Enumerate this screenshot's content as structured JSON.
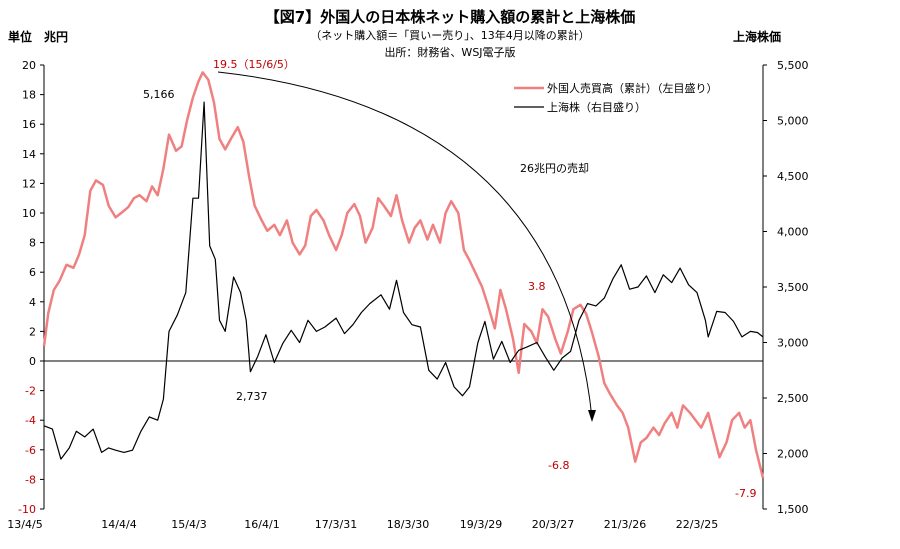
{
  "chart_data": {
    "type": "line",
    "title": "【図7】外国人の日本株ネット購入額の累計と上海株価",
    "subtitle": "（ネット購入額＝「買いー売り」、13年4月以降の累計）",
    "source": "出所：財務省、WSJ電子版",
    "left_unit_label": "単位　兆円",
    "right_axis_label": "上海株価",
    "left_axis": {
      "range": [
        -10,
        20
      ],
      "ticks": [
        -10,
        -8,
        -6,
        -4,
        -2,
        0,
        2,
        4,
        6,
        8,
        10,
        12,
        14,
        16,
        18,
        20
      ]
    },
    "right_axis": {
      "range": [
        1500,
        5500
      ],
      "ticks": [
        "1,500",
        "2,000",
        "2,500",
        "3,000",
        "3,500",
        "4,000",
        "4,500",
        "5,000",
        "5,500"
      ]
    },
    "x_tick_labels": [
      "13/4/5",
      "14/4/4",
      "15/4/3",
      "16/4/1",
      "17/3/31",
      "18/3/30",
      "19/3/29",
      "20/3/27",
      "21/3/26",
      "22/3/25"
    ],
    "x_range": [
      "2013-04-05",
      "2023-01-27"
    ],
    "grid": false,
    "legend_position": "top-right",
    "colors": {
      "foreign": "#f08080",
      "shanghai": "#000000",
      "annotation_red": "#c00000"
    },
    "series": [
      {
        "name": "外国人売買高（累計）（左目盛り）",
        "axis": "left",
        "points": [
          [
            "2013-04-05",
            1.0
          ],
          [
            "2013-04-26",
            3.2
          ],
          [
            "2013-05-24",
            4.8
          ],
          [
            "2013-06-21",
            5.4
          ],
          [
            "2013-07-26",
            6.5
          ],
          [
            "2013-08-30",
            6.3
          ],
          [
            "2013-09-27",
            7.2
          ],
          [
            "2013-10-25",
            8.5
          ],
          [
            "2013-11-22",
            11.5
          ],
          [
            "2013-12-20",
            12.2
          ],
          [
            "2014-01-24",
            11.9
          ],
          [
            "2014-02-21",
            10.5
          ],
          [
            "2014-03-28",
            9.7
          ],
          [
            "2014-04-25",
            10.0
          ],
          [
            "2014-05-30",
            10.4
          ],
          [
            "2014-06-27",
            11.0
          ],
          [
            "2014-07-25",
            11.2
          ],
          [
            "2014-08-29",
            10.8
          ],
          [
            "2014-09-26",
            11.8
          ],
          [
            "2014-10-24",
            11.2
          ],
          [
            "2014-11-21",
            13.0
          ],
          [
            "2014-12-19",
            15.3
          ],
          [
            "2015-01-23",
            14.2
          ],
          [
            "2015-02-20",
            14.5
          ],
          [
            "2015-03-20",
            16.3
          ],
          [
            "2015-04-17",
            17.8
          ],
          [
            "2015-05-15",
            18.9
          ],
          [
            "2015-06-05",
            19.5
          ],
          [
            "2015-07-03",
            19.0
          ],
          [
            "2015-07-31",
            17.5
          ],
          [
            "2015-08-28",
            15.0
          ],
          [
            "2015-09-25",
            14.3
          ],
          [
            "2015-10-23",
            15.0
          ],
          [
            "2015-11-27",
            15.8
          ],
          [
            "2015-12-25",
            14.8
          ],
          [
            "2016-01-22",
            12.5
          ],
          [
            "2016-02-19",
            10.5
          ],
          [
            "2016-03-25",
            9.5
          ],
          [
            "2016-04-22",
            8.8
          ],
          [
            "2016-05-27",
            9.2
          ],
          [
            "2016-06-24",
            8.5
          ],
          [
            "2016-07-29",
            9.5
          ],
          [
            "2016-08-26",
            8.0
          ],
          [
            "2016-09-30",
            7.2
          ],
          [
            "2016-10-28",
            7.8
          ],
          [
            "2016-11-25",
            9.8
          ],
          [
            "2016-12-23",
            10.2
          ],
          [
            "2017-01-27",
            9.5
          ],
          [
            "2017-02-24",
            8.5
          ],
          [
            "2017-03-31",
            7.5
          ],
          [
            "2017-04-28",
            8.5
          ],
          [
            "2017-05-26",
            10.0
          ],
          [
            "2017-06-30",
            10.6
          ],
          [
            "2017-07-28",
            9.8
          ],
          [
            "2017-08-25",
            8.0
          ],
          [
            "2017-09-29",
            9.0
          ],
          [
            "2017-10-27",
            11.0
          ],
          [
            "2017-11-24",
            10.5
          ],
          [
            "2017-12-29",
            9.8
          ],
          [
            "2018-01-26",
            11.2
          ],
          [
            "2018-02-23",
            9.5
          ],
          [
            "2018-03-30",
            8.0
          ],
          [
            "2018-04-27",
            9.0
          ],
          [
            "2018-05-25",
            9.5
          ],
          [
            "2018-06-29",
            8.2
          ],
          [
            "2018-07-27",
            9.2
          ],
          [
            "2018-08-31",
            8.0
          ],
          [
            "2018-09-28",
            10.0
          ],
          [
            "2018-10-26",
            10.8
          ],
          [
            "2018-11-30",
            10.0
          ],
          [
            "2018-12-28",
            7.5
          ],
          [
            "2019-01-25",
            6.8
          ],
          [
            "2019-02-22",
            6.0
          ],
          [
            "2019-03-29",
            5.0
          ],
          [
            "2019-04-26",
            3.8
          ],
          [
            "2019-05-31",
            2.2
          ],
          [
            "2019-06-28",
            4.8
          ],
          [
            "2019-07-26",
            3.5
          ],
          [
            "2019-08-30",
            1.5
          ],
          [
            "2019-09-27",
            -0.8
          ],
          [
            "2019-10-25",
            2.5
          ],
          [
            "2019-11-29",
            2.0
          ],
          [
            "2019-12-27",
            1.2
          ],
          [
            "2020-01-24",
            3.5
          ],
          [
            "2020-02-21",
            3.0
          ],
          [
            "2020-03-27",
            1.5
          ],
          [
            "2020-04-24",
            0.5
          ],
          [
            "2020-05-29",
            2.0
          ],
          [
            "2020-06-26",
            3.5
          ],
          [
            "2020-07-31",
            3.8
          ],
          [
            "2020-08-28",
            3.2
          ],
          [
            "2020-09-25",
            2.0
          ],
          [
            "2020-10-30",
            0.3
          ],
          [
            "2020-11-27",
            -1.5
          ],
          [
            "2020-12-25",
            -2.2
          ],
          [
            "2021-01-29",
            -3.0
          ],
          [
            "2021-02-26",
            -3.5
          ],
          [
            "2021-03-26",
            -4.5
          ],
          [
            "2021-04-30",
            -6.8
          ],
          [
            "2021-05-28",
            -5.5
          ],
          [
            "2021-06-25",
            -5.2
          ],
          [
            "2021-07-30",
            -4.5
          ],
          [
            "2021-08-27",
            -5.0
          ],
          [
            "2021-09-24",
            -4.2
          ],
          [
            "2021-10-29",
            -3.5
          ],
          [
            "2021-11-26",
            -4.5
          ],
          [
            "2021-12-24",
            -3.0
          ],
          [
            "2022-01-28",
            -3.5
          ],
          [
            "2022-02-25",
            -4.0
          ],
          [
            "2022-03-25",
            -4.5
          ],
          [
            "2022-04-29",
            -3.5
          ],
          [
            "2022-05-27",
            -5.0
          ],
          [
            "2022-06-24",
            -6.5
          ],
          [
            "2022-07-29",
            -5.5
          ],
          [
            "2022-08-26",
            -4.0
          ],
          [
            "2022-09-30",
            -3.5
          ],
          [
            "2022-10-28",
            -4.5
          ],
          [
            "2022-11-25",
            -4.0
          ],
          [
            "2022-12-23",
            -6.0
          ],
          [
            "2023-01-27",
            -7.9
          ]
        ]
      },
      {
        "name": "上海株（右目盛り）",
        "axis": "right",
        "points": [
          [
            "2013-04-05",
            2250
          ],
          [
            "2013-05-17",
            2220
          ],
          [
            "2013-06-28",
            1950
          ],
          [
            "2013-08-09",
            2050
          ],
          [
            "2013-09-13",
            2200
          ],
          [
            "2013-10-25",
            2150
          ],
          [
            "2013-12-06",
            2220
          ],
          [
            "2014-01-17",
            2010
          ],
          [
            "2014-02-21",
            2050
          ],
          [
            "2014-03-28",
            2030
          ],
          [
            "2014-05-09",
            2010
          ],
          [
            "2014-06-20",
            2030
          ],
          [
            "2014-08-01",
            2200
          ],
          [
            "2014-09-12",
            2330
          ],
          [
            "2014-10-24",
            2300
          ],
          [
            "2014-11-21",
            2490
          ],
          [
            "2014-12-19",
            3100
          ],
          [
            "2015-01-30",
            3250
          ],
          [
            "2015-03-13",
            3450
          ],
          [
            "2015-04-17",
            4300
          ],
          [
            "2015-05-15",
            4300
          ],
          [
            "2015-06-12",
            5166
          ],
          [
            "2015-07-10",
            3870
          ],
          [
            "2015-08-07",
            3750
          ],
          [
            "2015-08-28",
            3200
          ],
          [
            "2015-09-25",
            3100
          ],
          [
            "2015-11-06",
            3590
          ],
          [
            "2015-12-11",
            3450
          ],
          [
            "2016-01-08",
            3200
          ],
          [
            "2016-01-29",
            2737
          ],
          [
            "2016-03-04",
            2870
          ],
          [
            "2016-04-15",
            3070
          ],
          [
            "2016-05-27",
            2820
          ],
          [
            "2016-07-08",
            2990
          ],
          [
            "2016-08-19",
            3110
          ],
          [
            "2016-09-30",
            3000
          ],
          [
            "2016-11-11",
            3200
          ],
          [
            "2016-12-23",
            3100
          ],
          [
            "2017-02-03",
            3140
          ],
          [
            "2017-03-31",
            3220
          ],
          [
            "2017-05-12",
            3080
          ],
          [
            "2017-06-23",
            3160
          ],
          [
            "2017-08-04",
            3270
          ],
          [
            "2017-09-15",
            3350
          ],
          [
            "2017-11-10",
            3430
          ],
          [
            "2017-12-22",
            3300
          ],
          [
            "2018-01-26",
            3560
          ],
          [
            "2018-03-02",
            3270
          ],
          [
            "2018-04-13",
            3160
          ],
          [
            "2018-05-25",
            3140
          ],
          [
            "2018-07-06",
            2750
          ],
          [
            "2018-08-17",
            2670
          ],
          [
            "2018-09-28",
            2820
          ],
          [
            "2018-11-09",
            2600
          ],
          [
            "2018-12-21",
            2520
          ],
          [
            "2019-01-25",
            2600
          ],
          [
            "2019-03-08",
            3000
          ],
          [
            "2019-04-12",
            3190
          ],
          [
            "2019-05-24",
            2850
          ],
          [
            "2019-07-05",
            3010
          ],
          [
            "2019-08-16",
            2820
          ],
          [
            "2019-09-27",
            2930
          ],
          [
            "2019-11-08",
            2960
          ],
          [
            "2019-12-27",
            3000
          ],
          [
            "2020-02-07",
            2870
          ],
          [
            "2020-03-20",
            2750
          ],
          [
            "2020-05-01",
            2860
          ],
          [
            "2020-06-12",
            2920
          ],
          [
            "2020-07-24",
            3200
          ],
          [
            "2020-09-04",
            3350
          ],
          [
            "2020-10-16",
            3330
          ],
          [
            "2020-11-27",
            3400
          ],
          [
            "2021-01-08",
            3570
          ],
          [
            "2021-02-19",
            3700
          ],
          [
            "2021-04-02",
            3480
          ],
          [
            "2021-05-14",
            3500
          ],
          [
            "2021-06-25",
            3600
          ],
          [
            "2021-08-06",
            3450
          ],
          [
            "2021-09-17",
            3610
          ],
          [
            "2021-10-29",
            3540
          ],
          [
            "2021-12-10",
            3670
          ],
          [
            "2022-01-21",
            3520
          ],
          [
            "2022-03-04",
            3450
          ],
          [
            "2022-04-15",
            3200
          ],
          [
            "2022-04-29",
            3050
          ],
          [
            "2022-06-10",
            3280
          ],
          [
            "2022-07-22",
            3270
          ],
          [
            "2022-09-02",
            3190
          ],
          [
            "2022-10-14",
            3050
          ],
          [
            "2022-11-25",
            3100
          ],
          [
            "2022-12-30",
            3090
          ],
          [
            "2023-01-27",
            3050
          ]
        ]
      }
    ],
    "annotations": {
      "peak_red": "19.5（15/6/5）",
      "shanghai_peak": "5,166",
      "shanghai_low": "2,737",
      "mid_red": "3.8",
      "low_red": "-6.8",
      "end_red": "-7.9",
      "arrow_text": "26兆円の売却"
    }
  }
}
